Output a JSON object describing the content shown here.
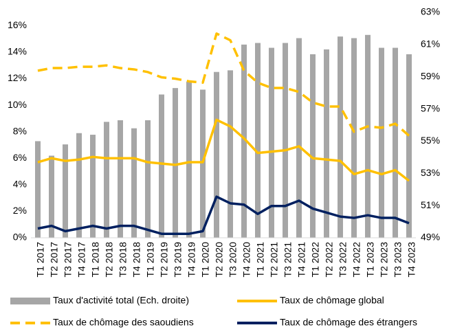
{
  "chart_data": {
    "type": "combo",
    "categories": [
      "T1 2017",
      "T2 2017",
      "T3 2017",
      "T4 2017",
      "T1 2018",
      "T2 2018",
      "T3 2018",
      "T4 2018",
      "T1 2019",
      "T2 2019",
      "T3 2019",
      "T4 2019",
      "T1 2020",
      "T2 2020",
      "T3 2020",
      "T4 2020",
      "T1 2021",
      "T2 2021",
      "T3 2021",
      "T4 2021",
      "T1 2022",
      "T2 2022",
      "T3 2022",
      "T4 2022",
      "T1 2023",
      "T2 2023",
      "T3 2023",
      "T4 2023"
    ],
    "ylim": [
      0,
      17
    ],
    "yticks": [
      {
        "value": 0,
        "label": "0%"
      },
      {
        "value": 2,
        "label": "2%"
      },
      {
        "value": 4,
        "label": "4%"
      },
      {
        "value": 6,
        "label": "6%"
      },
      {
        "value": 8,
        "label": "8%"
      },
      {
        "value": 10,
        "label": "10%"
      },
      {
        "value": 12,
        "label": "12%"
      },
      {
        "value": 14,
        "label": "14%"
      },
      {
        "value": 16,
        "label": "16%"
      }
    ],
    "y2lim": [
      49,
      63
    ],
    "y2ticks": [
      {
        "value": 49,
        "label": "49%"
      },
      {
        "value": 51,
        "label": "51%"
      },
      {
        "value": 53,
        "label": "53%"
      },
      {
        "value": 55,
        "label": "55%"
      },
      {
        "value": 57,
        "label": "57%"
      },
      {
        "value": 59,
        "label": "59%"
      },
      {
        "value": 61,
        "label": "61%"
      },
      {
        "value": 63,
        "label": "63%"
      }
    ],
    "series": [
      {
        "name": "Taux d'activité total (Ech. droite)",
        "type": "bar",
        "axis": "y2",
        "color": "#a6a6a6",
        "values": [
          55.0,
          54.1,
          54.8,
          55.5,
          55.4,
          56.2,
          56.3,
          55.8,
          56.3,
          57.9,
          58.3,
          58.7,
          58.2,
          59.3,
          59.4,
          61.0,
          61.1,
          60.8,
          61.1,
          61.4,
          60.4,
          60.7,
          61.5,
          61.4,
          61.6,
          60.8,
          60.8,
          60.4
        ]
      },
      {
        "name": "Taux de chômage global",
        "type": "line",
        "color": "#ffc000",
        "dashed": false,
        "values": [
          5.7,
          6.0,
          5.8,
          5.9,
          6.1,
          6.0,
          6.0,
          6.0,
          5.7,
          5.6,
          5.5,
          5.7,
          5.7,
          8.9,
          8.4,
          7.5,
          6.4,
          6.5,
          6.6,
          6.9,
          6.0,
          5.9,
          5.8,
          4.8,
          5.1,
          4.8,
          5.1,
          4.3
        ]
      },
      {
        "name": "Taux de chômage des saoudiens",
        "type": "line",
        "color": "#ffc000",
        "dashed": true,
        "values": [
          12.6,
          12.8,
          12.8,
          12.9,
          12.9,
          13.0,
          12.8,
          12.7,
          12.5,
          12.1,
          12.0,
          11.8,
          11.7,
          15.4,
          14.9,
          12.6,
          11.7,
          11.3,
          11.3,
          11.0,
          10.2,
          9.9,
          9.9,
          8.0,
          8.4,
          8.3,
          8.6,
          7.7
        ]
      },
      {
        "name": "Taux de chômage des étrangers",
        "type": "line",
        "color": "#002060",
        "dashed": false,
        "values": [
          0.7,
          0.9,
          0.5,
          0.7,
          0.9,
          0.7,
          0.9,
          0.9,
          0.6,
          0.3,
          0.3,
          0.3,
          0.5,
          3.1,
          2.6,
          2.5,
          1.8,
          2.4,
          2.4,
          2.8,
          2.2,
          1.9,
          1.6,
          1.5,
          1.7,
          1.5,
          1.5,
          1.1
        ]
      }
    ]
  }
}
